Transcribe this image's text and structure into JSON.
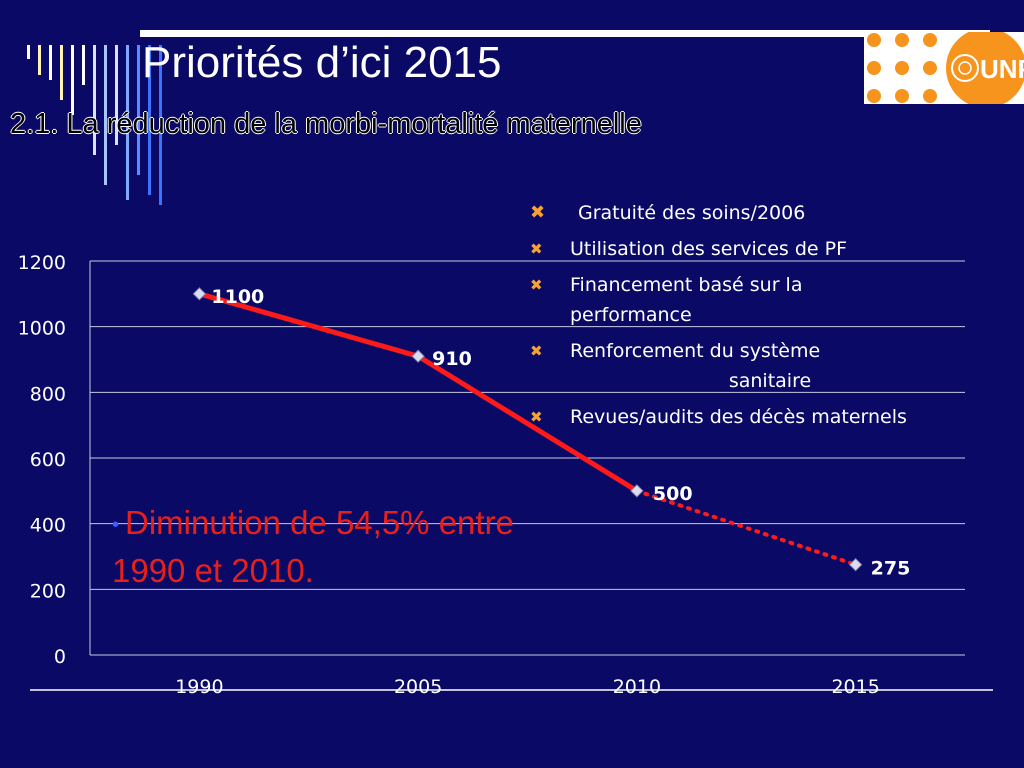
{
  "slide": {
    "title": "Priorités d’ici 2015",
    "subtitle": "2.1. La réduction de la morbi-mortalité maternelle",
    "logo_text": "UNFPA",
    "note": "Diminution de 54,5% entre 1990 et 2010."
  },
  "bullets": [
    {
      "text": "Gratuité des soins/2006",
      "cont": ""
    },
    {
      "text": "Utilisation des services de PF",
      "cont": ""
    },
    {
      "text": "Financement basé sur la",
      "cont": "performance"
    },
    {
      "text": "Renforcement du système",
      "cont": "sanitaire"
    },
    {
      "text": "Revues/audits des décès maternels",
      "cont": ""
    }
  ],
  "colors": {
    "background": "#0a0a66",
    "line": "#ff1a1a",
    "bullet_mark": "#f4a23a",
    "note_text": "#e8201a",
    "logo_orange": "#f7941d"
  },
  "chart_data": {
    "type": "line",
    "title": "",
    "xlabel": "",
    "ylabel": "",
    "categories": [
      "1990",
      "2005",
      "2010",
      "2015"
    ],
    "series": [
      {
        "values": [
          1100,
          910,
          500,
          275
        ],
        "labels": [
          "1100",
          "910",
          "500",
          "275"
        ],
        "projected_from_index": 2
      }
    ],
    "ylim": [
      0,
      1200
    ],
    "yticks": [
      0,
      200,
      400,
      600,
      800,
      1000,
      1200
    ],
    "grid": true,
    "legend": "none"
  }
}
